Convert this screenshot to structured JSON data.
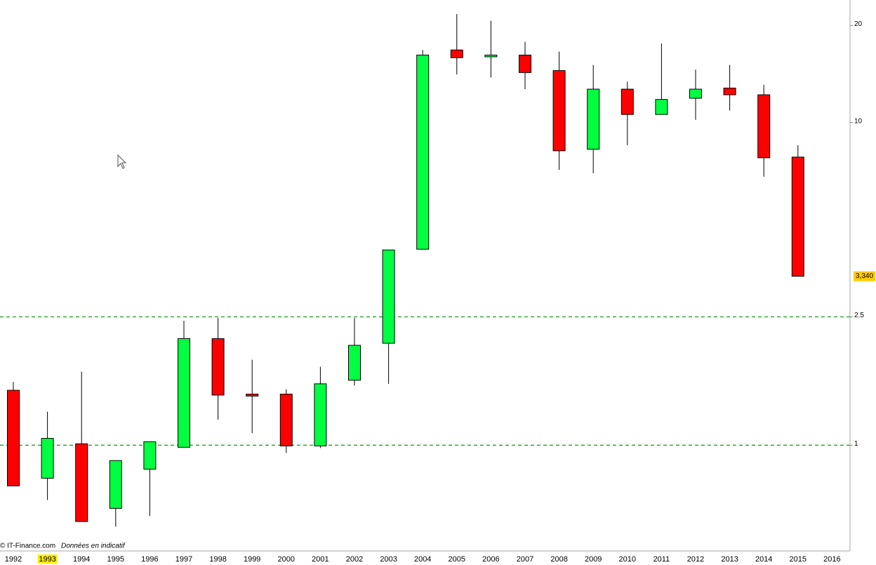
{
  "chart_data": {
    "type": "candlestick",
    "categories": [
      "1992",
      "1993",
      "1994",
      "1995",
      "1996",
      "1997",
      "1998",
      "1999",
      "2000",
      "2001",
      "2002",
      "2003",
      "2004",
      "2005",
      "2006",
      "2007",
      "2008",
      "2009",
      "2010",
      "2011",
      "2012",
      "2013",
      "2014",
      "2015",
      "2016"
    ],
    "highlighted_category_index": 1,
    "open": [
      1.48,
      0.79,
      1.01,
      0.637,
      0.843,
      0.985,
      2.14,
      1.44,
      1.44,
      0.995,
      1.59,
      2.07,
      4.05,
      16.8,
      16.0,
      16.2,
      14.5,
      8.27,
      12.7,
      10.6,
      11.9,
      12.8,
      12.2,
      7.82,
      null
    ],
    "high": [
      1.57,
      1.27,
      1.69,
      0.896,
      1.025,
      2.43,
      2.48,
      1.84,
      1.49,
      1.75,
      2.48,
      4.03,
      16.8,
      21.7,
      20.7,
      17.8,
      16.6,
      15.1,
      13.4,
      17.6,
      14.6,
      15.1,
      13.1,
      8.51,
      null
    ],
    "low": [
      0.748,
      0.676,
      0.58,
      0.559,
      0.603,
      0.985,
      1.2,
      1.09,
      0.946,
      0.98,
      1.53,
      1.55,
      4.05,
      14.1,
      13.8,
      12.7,
      7.14,
      6.97,
      8.51,
      10.6,
      10.2,
      10.9,
      6.8,
      3.34,
      null
    ],
    "close": [
      0.748,
      1.05,
      0.58,
      0.896,
      1.025,
      2.14,
      1.43,
      1.42,
      0.995,
      1.55,
      2.04,
      4.03,
      16.2,
      15.9,
      16.2,
      14.3,
      8.18,
      12.7,
      10.6,
      11.8,
      12.7,
      12.2,
      7.78,
      3.34,
      null
    ],
    "up_color": "#00ff40",
    "down_color": "#ff0000",
    "log_scale": true,
    "ylim": [
      0.47,
      24
    ],
    "yticks": [
      1,
      2.5,
      10,
      20
    ],
    "hlines": [
      1,
      2.5
    ],
    "hline_color": "#2ca02c",
    "last_price": {
      "value": 3.34,
      "label": "3,340"
    },
    "footer": [
      "© IT-Finance.com",
      "Données en indicatif"
    ]
  }
}
